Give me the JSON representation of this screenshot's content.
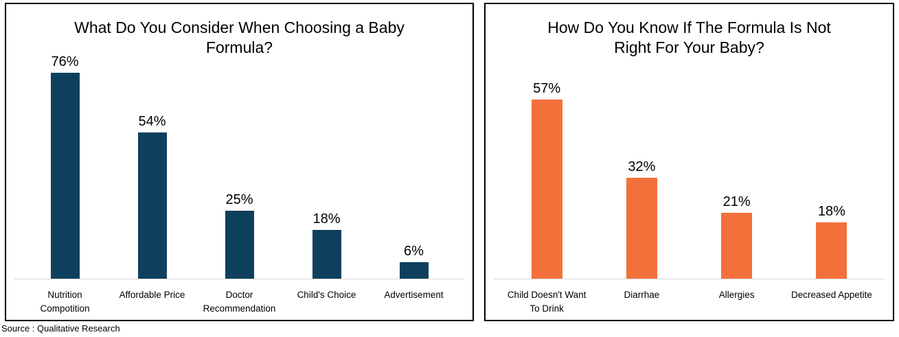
{
  "source_note": "Source : Qualitative Research",
  "chart_data": [
    {
      "type": "bar",
      "title": "What Do You Consider When Choosing a Baby Formula?",
      "title_lines": [
        "What Do You Consider When Choosing a Baby",
        "Formula?"
      ],
      "categories": [
        "Nutrition Compotition",
        "Affordable Price",
        "Doctor Recommendation",
        "Child's Choice",
        "Advertisement"
      ],
      "categories_lines": [
        [
          "Nutrition",
          "Compotition"
        ],
        [
          "Affordable Price"
        ],
        [
          "Doctor",
          "Recommendation"
        ],
        [
          "Child's Choice"
        ],
        [
          "Advertisement"
        ]
      ],
      "values": [
        76,
        54,
        25,
        18,
        6
      ],
      "value_labels": [
        "76%",
        "54%",
        "25%",
        "18%",
        "6%"
      ],
      "bar_color": "#0E405E",
      "data_labels": true,
      "y_axis_visible": false,
      "gridlines": false,
      "baseline_color": "#d6d6d6"
    },
    {
      "type": "bar",
      "title": "How Do You Know If The Formula Is Not Right For Your Baby?",
      "title_lines": [
        "How Do You Know If The Formula Is Not",
        "Right For Your Baby?"
      ],
      "categories": [
        "Child Doesn't Want To Drink",
        "Diarrhae",
        "Allergies",
        "Decreased Appetite"
      ],
      "categories_lines": [
        [
          "Child Doesn't Want",
          "To Drink"
        ],
        [
          "Diarrhae"
        ],
        [
          "Allergies"
        ],
        [
          "Decreased Appetite"
        ]
      ],
      "values": [
        57,
        32,
        21,
        18
      ],
      "value_labels": [
        "57%",
        "32%",
        "21%",
        "18%"
      ],
      "bar_color": "#F4703B",
      "data_labels": true,
      "y_axis_visible": false,
      "gridlines": false,
      "baseline_color": "#d6d6d6"
    }
  ]
}
